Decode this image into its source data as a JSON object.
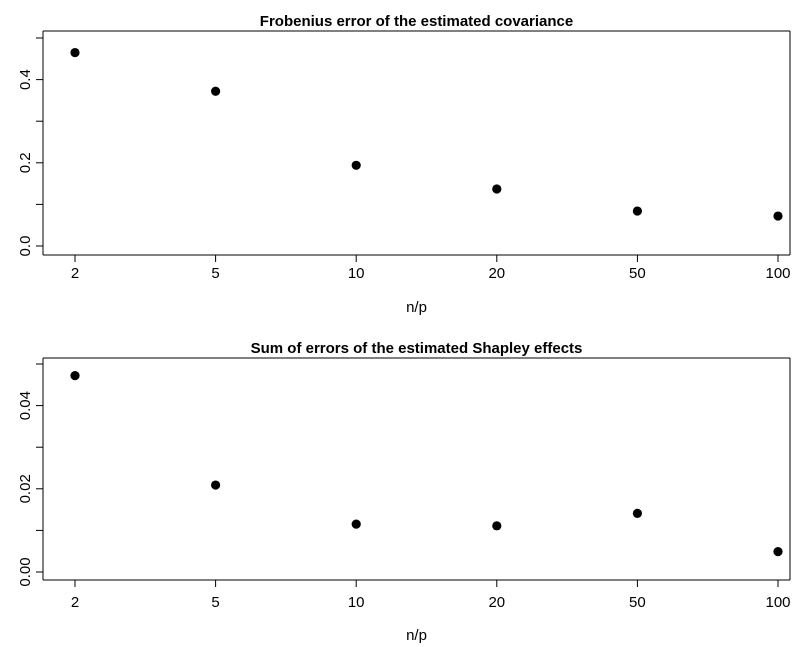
{
  "chart_data": [
    {
      "type": "scatter",
      "title": "Frobenius error of the estimated covariance",
      "xlabel": "n/p",
      "ylabel": "",
      "categories": [
        "2",
        "5",
        "10",
        "20",
        "50",
        "100"
      ],
      "values": [
        0.465,
        0.372,
        0.194,
        0.137,
        0.084,
        0.072
      ],
      "ylim": [
        0,
        0.5
      ],
      "yticks": [
        "0.0",
        "0.2",
        "0.4"
      ],
      "ytick_values": [
        0,
        0.2,
        0.4
      ],
      "grid": false,
      "marker_color": "#000000"
    },
    {
      "type": "scatter",
      "title": "Sum of errors of the estimated Shapley effects",
      "xlabel": "n/p",
      "ylabel": "",
      "categories": [
        "2",
        "5",
        "10",
        "20",
        "50",
        "100"
      ],
      "values": [
        0.0472,
        0.0209,
        0.0115,
        0.0111,
        0.0141,
        0.0049
      ],
      "ylim": [
        0,
        0.05
      ],
      "yticks": [
        "0.00",
        "0.02",
        "0.04"
      ],
      "ytick_values": [
        0,
        0.02,
        0.04
      ],
      "grid": false,
      "marker_color": "#000000"
    }
  ]
}
